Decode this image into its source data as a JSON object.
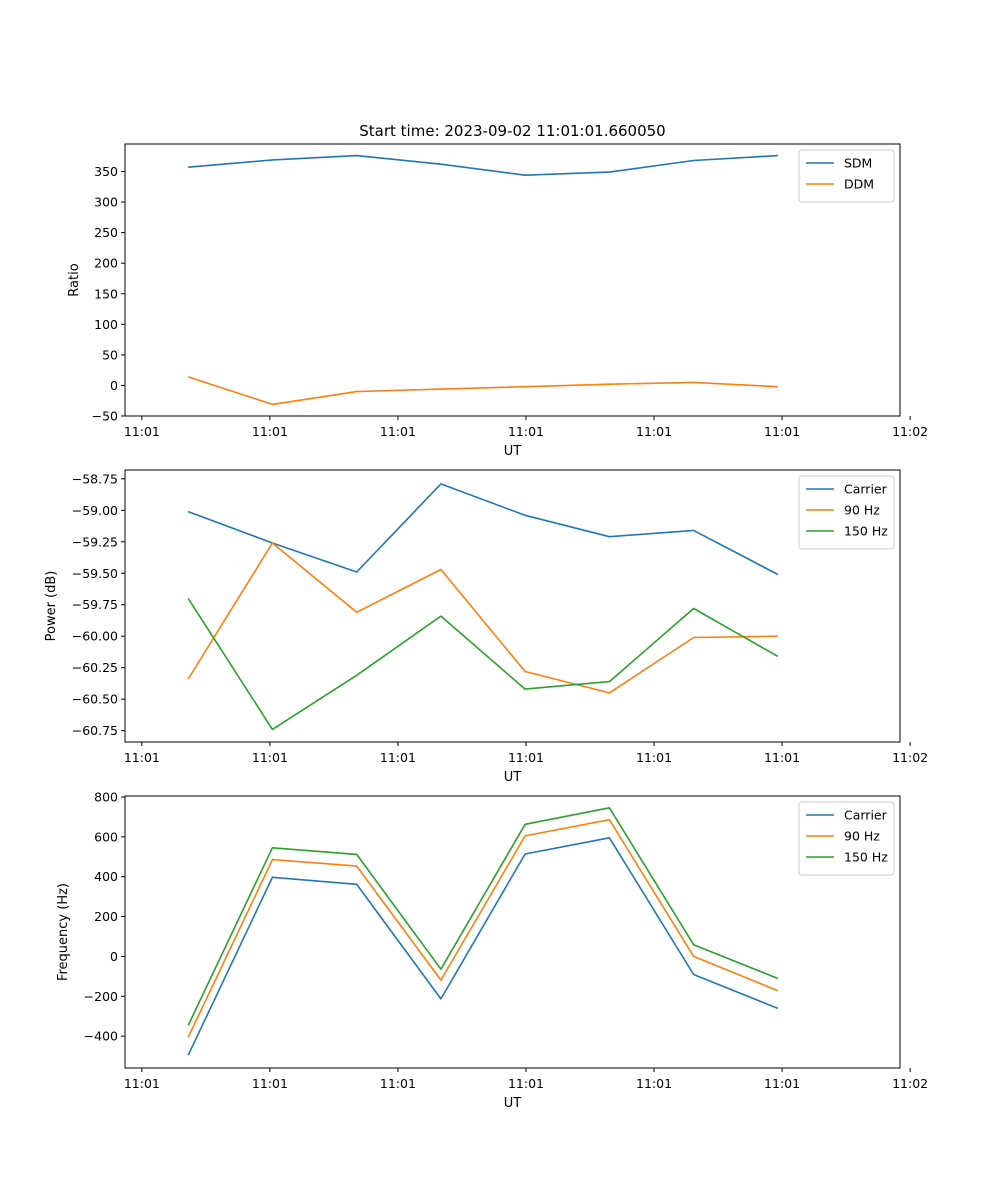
{
  "figure_title": "Start time: 2023-09-02 11:01:01.660050",
  "chart_data": [
    {
      "type": "line",
      "title": "Start time: 2023-09-02 11:01:01.660050",
      "xlabel": "UT",
      "ylabel": "Ratio",
      "x": [
        1,
        2,
        3,
        4,
        5,
        6,
        7,
        8
      ],
      "xlim": [
        0.25,
        9.45
      ],
      "xticks": [
        0.45,
        1.97,
        3.49,
        5.01,
        6.53,
        8.05,
        9.57
      ],
      "xtick_labels": [
        "11:01",
        "11:01",
        "11:01",
        "11:01",
        "11:01",
        "11:01",
        "11:02"
      ],
      "ylim": [
        -50,
        395
      ],
      "yticks": [
        -50,
        0,
        50,
        100,
        150,
        200,
        250,
        300,
        350
      ],
      "ytick_labels": [
        "−50",
        "0",
        "50",
        "100",
        "150",
        "200",
        "250",
        "300",
        "350"
      ],
      "legend_position": "top-right",
      "series": [
        {
          "name": "SDM",
          "color": "#1f77b4",
          "values": [
            357,
            369,
            376,
            362,
            344,
            349,
            368,
            376
          ]
        },
        {
          "name": "DDM",
          "color": "#ff7f0e",
          "values": [
            14,
            -31,
            -10,
            -6,
            -2,
            2,
            5,
            -2
          ]
        }
      ]
    },
    {
      "type": "line",
      "title": "",
      "xlabel": "UT",
      "ylabel": "Power (dB)",
      "x": [
        1,
        2,
        3,
        4,
        5,
        6,
        7,
        8
      ],
      "xlim": [
        0.25,
        9.45
      ],
      "xticks": [
        0.45,
        1.97,
        3.49,
        5.01,
        6.53,
        8.05,
        9.57
      ],
      "xtick_labels": [
        "11:01",
        "11:01",
        "11:01",
        "11:01",
        "11:01",
        "11:01",
        "11:02"
      ],
      "ylim": [
        -60.84,
        -58.68
      ],
      "yticks": [
        -60.75,
        -60.5,
        -60.25,
        -60.0,
        -59.75,
        -59.5,
        -59.25,
        -59.0,
        -58.75
      ],
      "ytick_labels": [
        "−60.75",
        "−60.50",
        "−60.25",
        "−60.00",
        "−59.75",
        "−59.50",
        "−59.25",
        "−59.00",
        "−58.75"
      ],
      "legend_position": "top-right",
      "series": [
        {
          "name": "Carrier",
          "color": "#1f77b4",
          "values": [
            -59.01,
            -59.26,
            -59.49,
            -58.79,
            -59.04,
            -59.21,
            -59.16,
            -59.51
          ]
        },
        {
          "name": "90 Hz",
          "color": "#ff7f0e",
          "values": [
            -60.34,
            -59.26,
            -59.81,
            -59.47,
            -60.28,
            -60.45,
            -60.01,
            -60.0
          ]
        },
        {
          "name": "150 Hz",
          "color": "#2ca02c",
          "values": [
            -59.7,
            -60.74,
            -60.31,
            -59.84,
            -60.42,
            -60.36,
            -59.78,
            -60.16
          ]
        }
      ]
    },
    {
      "type": "line",
      "title": "",
      "xlabel": "UT",
      "ylabel": "Frequency (Hz)",
      "x": [
        1,
        2,
        3,
        4,
        5,
        6,
        7,
        8
      ],
      "xlim": [
        0.25,
        9.45
      ],
      "xticks": [
        0.45,
        1.97,
        3.49,
        5.01,
        6.53,
        8.05,
        9.57
      ],
      "xtick_labels": [
        "11:01",
        "11:01",
        "11:01",
        "11:01",
        "11:01",
        "11:01",
        "11:02"
      ],
      "ylim": [
        -560,
        805
      ],
      "yticks": [
        -400,
        -200,
        0,
        200,
        400,
        600,
        800
      ],
      "ytick_labels": [
        "−400",
        "−200",
        "0",
        "200",
        "400",
        "600",
        "800"
      ],
      "legend_position": "top-right",
      "series": [
        {
          "name": "Carrier",
          "color": "#1f77b4",
          "values": [
            -496,
            397,
            362,
            -213,
            514,
            595,
            -91,
            -261
          ]
        },
        {
          "name": "90 Hz",
          "color": "#ff7f0e",
          "values": [
            -406,
            486,
            453,
            -119,
            605,
            686,
            0,
            -172
          ]
        },
        {
          "name": "150 Hz",
          "color": "#2ca02c",
          "values": [
            -346,
            545,
            512,
            -64,
            663,
            746,
            59,
            -111
          ]
        }
      ]
    }
  ]
}
